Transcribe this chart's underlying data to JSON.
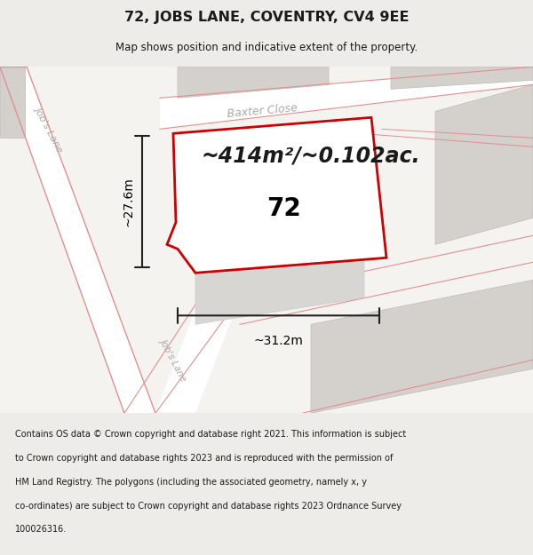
{
  "title": "72, JOBS LANE, COVENTRY, CV4 9EE",
  "subtitle": "Map shows position and indicative extent of the property.",
  "area_text": "~414m²/~0.102ac.",
  "label_72": "72",
  "dim_width": "~31.2m",
  "dim_height": "~27.6m",
  "road_label_jobs1": "Job's Lane",
  "road_label_jobs2": "Job's Lane",
  "road_label_baxter": "Baxter Close",
  "footer_lines": [
    "Contains OS data © Crown copyright and database right 2021. This information is subject",
    "to Crown copyright and database rights 2023 and is reproduced with the permission of",
    "HM Land Registry. The polygons (including the associated geometry, namely x, y",
    "co-ordinates) are subject to Crown copyright and database rights 2023 Ordnance Survey",
    "100026316."
  ],
  "bg_color": "#eeece8",
  "map_bg": "#f5f3ef",
  "plot_color_fill": "#ffffff",
  "plot_color_edge": "#cc0000",
  "road_color": "#ffffff",
  "building_color": "#d4d0cc",
  "road_line_color": "#e09090",
  "title_color": "#1a1a1a",
  "footer_color": "#1a1a1a",
  "dim_color": "#222222",
  "area_text_color": "#1a1a1a",
  "road_label_color": "#aaaaaa",
  "map_border_color": "#cccccc"
}
